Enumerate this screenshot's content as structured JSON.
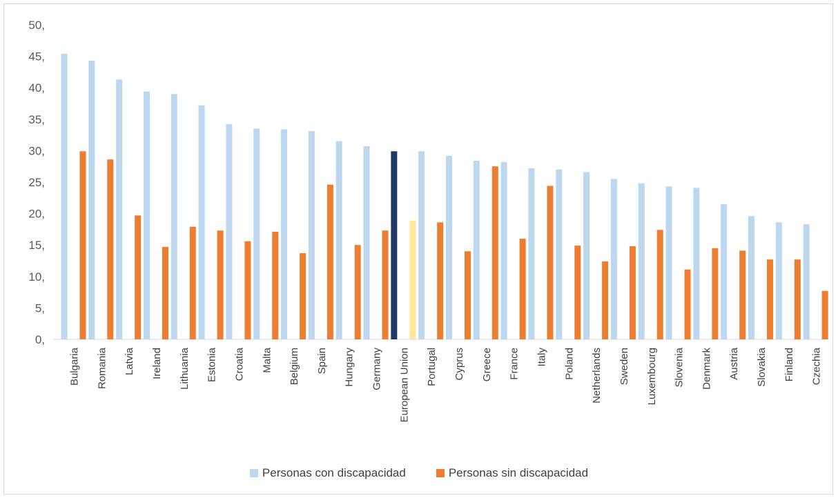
{
  "chart_data": {
    "type": "bar",
    "title": "",
    "xlabel": "",
    "ylabel": "",
    "ylim": [
      0,
      50
    ],
    "yticks": [
      0,
      5,
      10,
      15,
      20,
      25,
      30,
      35,
      40,
      45,
      50
    ],
    "ytick_labels": [
      "0,",
      "5,",
      "10,",
      "15,",
      "20,",
      "25,",
      "30,",
      "35,",
      "40,",
      "45,",
      "50,"
    ],
    "grid": false,
    "legend_position": "bottom",
    "categories": [
      "Bulgaria",
      "Romania",
      "Latvia",
      "Ireland",
      "Lithuania",
      "Estonia",
      "Croatia",
      "Malta",
      "Belgium",
      "Spain",
      "Hungary",
      "Germany",
      "European Union",
      "Portugal",
      "Cyprus",
      "Greece",
      "France",
      "Italy",
      "Poland",
      "Netherlands",
      "Sweden",
      "Luxembourg",
      "Slovenia",
      "Denmark",
      "Austria",
      "Slovakia",
      "Finland",
      "Czechia"
    ],
    "highlight_category": "European Union",
    "series": [
      {
        "name": "Personas con discapacidad",
        "color": "#bdd7ee",
        "highlight_color": "#1f3864",
        "values": [
          45.4,
          44.3,
          41.3,
          39.4,
          39.0,
          37.2,
          34.2,
          33.5,
          33.4,
          33.1,
          31.5,
          30.7,
          29.9,
          29.9,
          29.2,
          28.4,
          28.2,
          27.2,
          27.0,
          26.6,
          25.5,
          24.8,
          24.3,
          24.1,
          21.5,
          19.6,
          18.6,
          18.3
        ]
      },
      {
        "name": "Personas sin discapacidad",
        "color": "#ed7d31",
        "highlight_color": "#ffe699",
        "values": [
          29.9,
          28.6,
          19.7,
          14.7,
          17.9,
          17.3,
          15.6,
          17.1,
          13.7,
          24.6,
          15.0,
          17.3,
          18.9,
          18.6,
          14.0,
          27.5,
          16.0,
          24.4,
          14.9,
          12.4,
          14.8,
          17.4,
          11.1,
          14.5,
          14.1,
          12.7,
          12.7,
          7.7
        ]
      }
    ]
  }
}
